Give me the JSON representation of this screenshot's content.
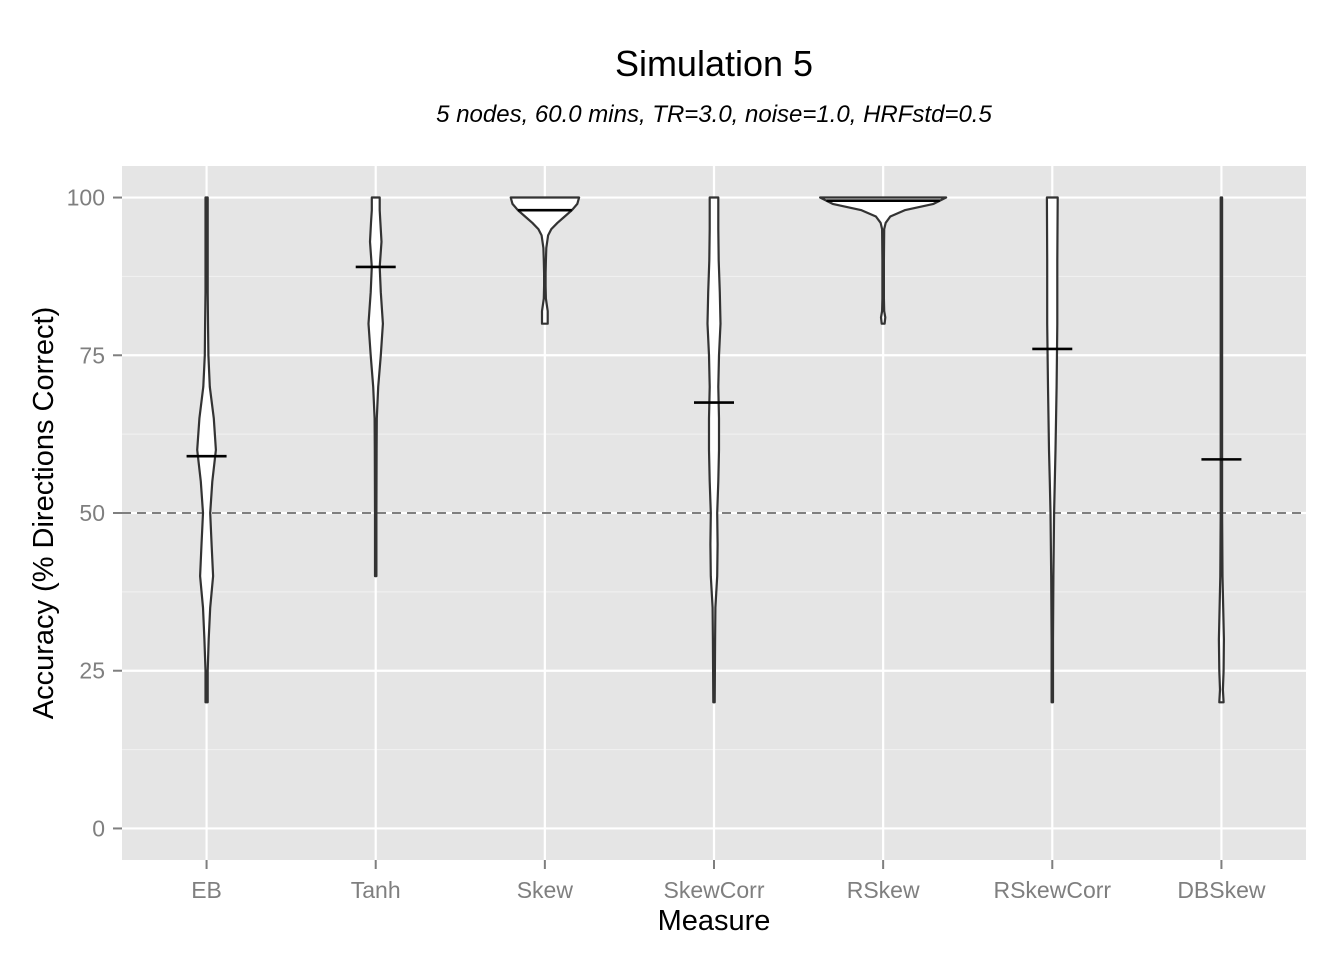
{
  "chart_data": {
    "type": "violin",
    "title": "Simulation 5",
    "subtitle": "5 nodes, 60.0 mins, TR=3.0, noise=1.0, HRFstd=0.5",
    "xlabel": "Measure",
    "ylabel": "Accuracy (% Directions Correct)",
    "ylim": [
      -5,
      105
    ],
    "yticks": [
      0,
      25,
      50,
      75,
      100
    ],
    "ytick_labels": [
      "0",
      "25",
      "50",
      "75",
      "100"
    ],
    "categories": [
      "EB",
      "Tanh",
      "Skew",
      "SkewCorr",
      "RSkew",
      "RSkewCorr",
      "DBSkew"
    ],
    "reference_line": 50,
    "grid": true,
    "colors": {
      "panel": "#e5e5e5",
      "grid_major": "#ffffff",
      "grid_minor": "#f2f2f2",
      "violin_fill": "#ffffff",
      "violin_stroke": "#333333",
      "median": "#000000",
      "reference": "#7f7f7f"
    },
    "series": [
      {
        "category": "EB",
        "min": 20,
        "max": 100,
        "median": 59,
        "profile": [
          [
            20,
            0.3
          ],
          [
            25,
            0.3
          ],
          [
            30,
            0.6
          ],
          [
            35,
            1.0
          ],
          [
            40,
            1.8
          ],
          [
            45,
            1.4
          ],
          [
            50,
            1.0
          ],
          [
            55,
            1.6
          ],
          [
            60,
            2.6
          ],
          [
            65,
            2.0
          ],
          [
            70,
            0.9
          ],
          [
            75,
            0.5
          ],
          [
            80,
            0.4
          ],
          [
            85,
            0.3
          ],
          [
            90,
            0.3
          ],
          [
            95,
            0.3
          ],
          [
            100,
            0.3
          ]
        ]
      },
      {
        "category": "Tanh",
        "min": 40,
        "max": 100,
        "median": 89,
        "profile": [
          [
            40,
            0.2
          ],
          [
            50,
            0.2
          ],
          [
            60,
            0.25
          ],
          [
            65,
            0.3
          ],
          [
            70,
            0.7
          ],
          [
            75,
            1.4
          ],
          [
            80,
            2.0
          ],
          [
            85,
            1.4
          ],
          [
            89,
            1.1
          ],
          [
            93,
            1.6
          ],
          [
            96,
            1.3
          ],
          [
            98,
            1.1
          ],
          [
            100,
            1.1
          ]
        ]
      },
      {
        "category": "Skew",
        "min": 80,
        "max": 100,
        "median": 98,
        "profile": [
          [
            80,
            0.8
          ],
          [
            82,
            0.8
          ],
          [
            84,
            0.3
          ],
          [
            86,
            0.2
          ],
          [
            88,
            0.2
          ],
          [
            90,
            0.3
          ],
          [
            92,
            0.4
          ],
          [
            94,
            0.9
          ],
          [
            95,
            1.8
          ],
          [
            96,
            3.5
          ],
          [
            97,
            5.5
          ],
          [
            98,
            7.5
          ],
          [
            99,
            9.0
          ],
          [
            100,
            9.5
          ]
        ]
      },
      {
        "category": "SkewCorr",
        "min": 20,
        "max": 100,
        "median": 67.5,
        "profile": [
          [
            20,
            0.2
          ],
          [
            30,
            0.3
          ],
          [
            35,
            0.4
          ],
          [
            40,
            0.9
          ],
          [
            45,
            1.0
          ],
          [
            50,
            0.9
          ],
          [
            55,
            1.2
          ],
          [
            60,
            1.4
          ],
          [
            65,
            1.4
          ],
          [
            70,
            1.2
          ],
          [
            75,
            1.4
          ],
          [
            80,
            1.8
          ],
          [
            85,
            1.6
          ],
          [
            90,
            1.3
          ],
          [
            95,
            1.2
          ],
          [
            100,
            1.2
          ]
        ]
      },
      {
        "category": "RSkew",
        "min": 80,
        "max": 100,
        "median": 99.5,
        "profile": [
          [
            80,
            0.4
          ],
          [
            81,
            0.6
          ],
          [
            82,
            0.3
          ],
          [
            84,
            0.2
          ],
          [
            90,
            0.2
          ],
          [
            95,
            0.3
          ],
          [
            96,
            0.7
          ],
          [
            97,
            2.0
          ],
          [
            98,
            6.0
          ],
          [
            99,
            14.0
          ],
          [
            100,
            17.5
          ]
        ]
      },
      {
        "category": "RSkewCorr",
        "min": 20,
        "max": 100,
        "median": 76,
        "profile": [
          [
            20,
            0.2
          ],
          [
            30,
            0.2
          ],
          [
            40,
            0.3
          ],
          [
            50,
            0.5
          ],
          [
            55,
            0.7
          ],
          [
            60,
            0.9
          ],
          [
            70,
            1.2
          ],
          [
            80,
            1.4
          ],
          [
            90,
            1.4
          ],
          [
            100,
            1.5
          ]
        ]
      },
      {
        "category": "DBSkew",
        "min": 20,
        "max": 100,
        "median": 58.5,
        "profile": [
          [
            20,
            0.6
          ],
          [
            22,
            0.4
          ],
          [
            25,
            0.6
          ],
          [
            30,
            0.7
          ],
          [
            35,
            0.5
          ],
          [
            40,
            0.3
          ],
          [
            50,
            0.2
          ],
          [
            60,
            0.2
          ],
          [
            70,
            0.2
          ],
          [
            80,
            0.2
          ],
          [
            90,
            0.2
          ],
          [
            100,
            0.2
          ]
        ]
      }
    ]
  }
}
